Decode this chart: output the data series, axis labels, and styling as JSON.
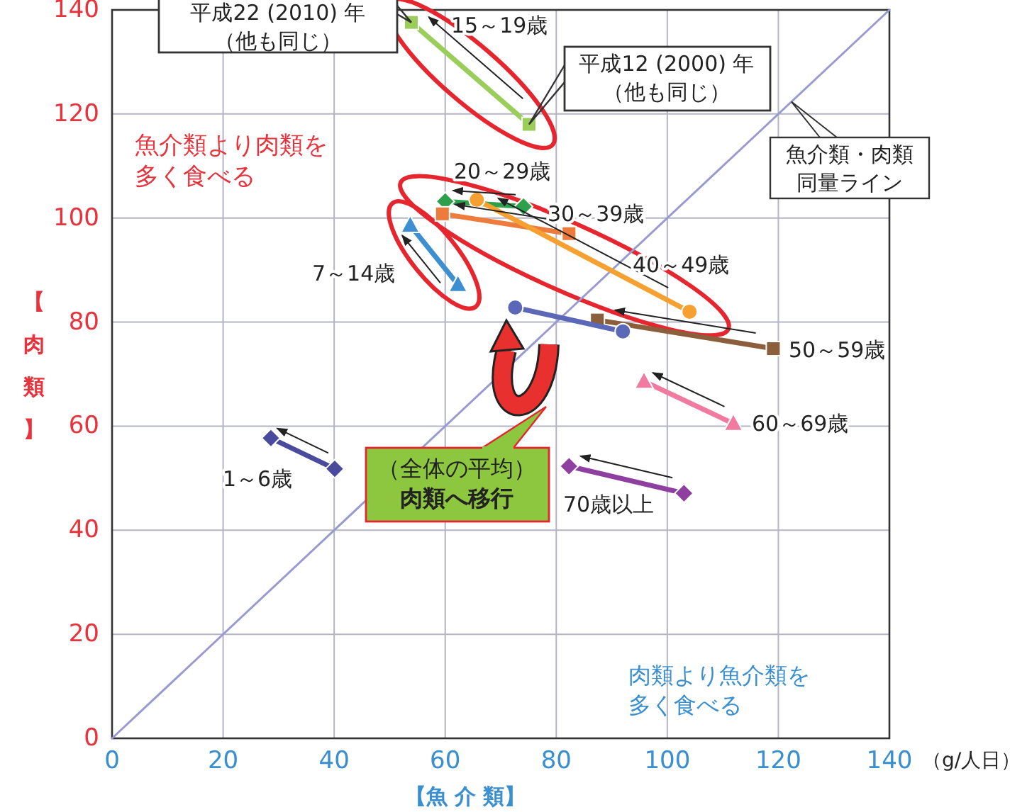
{
  "chart_data": {
    "type": "line",
    "xlabel": "【魚 介 類】",
    "ylabel": "【肉類】",
    "xlim": [
      0,
      140
    ],
    "ylim": [
      0,
      140
    ],
    "xticks": [
      0,
      20,
      40,
      60,
      80,
      100,
      120,
      140
    ],
    "yticks": [
      0,
      20,
      40,
      60,
      80,
      100,
      120,
      140
    ],
    "grid": true,
    "series": [
      {
        "name": "1～6歳",
        "color": "#4b4b9e",
        "marker": "diamond",
        "x": [
          40.1,
          28.6
        ],
        "values": [
          51.8,
          57.7
        ]
      },
      {
        "name": "7～14歳",
        "color": "#3d8fd1",
        "marker": "triangle",
        "x": [
          62.3,
          53.7
        ],
        "values": [
          87.2,
          98.6
        ]
      },
      {
        "name": "15～19歳",
        "color": "#9acd5a",
        "marker": "square",
        "x": [
          75.1,
          53.9
        ],
        "values": [
          118.0,
          137.6
        ]
      },
      {
        "name": "20～29歳",
        "color": "#2ea04c",
        "marker": "diamond",
        "x": [
          74.1,
          60.0
        ],
        "values": [
          102.2,
          103.2
        ]
      },
      {
        "name": "30～39歳",
        "color": "#ee7a3b",
        "marker": "square",
        "x": [
          82.3,
          59.5
        ],
        "values": [
          97.0,
          100.8
        ]
      },
      {
        "name": "40～49歳",
        "color": "#f5a030",
        "marker": "circle",
        "x": [
          104.0,
          65.7
        ],
        "values": [
          82.0,
          103.5
        ]
      },
      {
        "name": "50～59歳",
        "color": "#8b5e3c",
        "marker": "square",
        "x": [
          119.1,
          87.4
        ],
        "values": [
          74.9,
          80.4
        ]
      },
      {
        "name": "60～69歳",
        "color": "#f07aa0",
        "marker": "triangle",
        "x": [
          111.9,
          95.8
        ],
        "values": [
          60.5,
          68.6
        ]
      },
      {
        "name": "70歳以上",
        "color": "#8e3fa0",
        "marker": "diamond",
        "x": [
          103.0,
          82.3
        ],
        "values": [
          47.1,
          52.3
        ]
      },
      {
        "color": "#5b68b8",
        "marker": "circle",
        "x": [
          92.0,
          72.6
        ],
        "values": [
          78.2,
          82.8
        ]
      },
      {
        "name": "魚介類・肉類同量ライン",
        "color": "#9a9ad0",
        "marker": "none",
        "x": [
          0,
          140
        ],
        "values": [
          0,
          140
        ]
      }
    ],
    "annotations": [
      {
        "text": "平成22 (2010) 年（他も同じ）",
        "x": 53.9,
        "y": 137.6
      },
      {
        "text": "平成12 (2000) 年（他も同じ）",
        "x": 75.1,
        "y": 118.0
      },
      "魚介類より肉類を多く食べる",
      "肉類より魚介類を多く食べる",
      "（全体の平均）**肉類へ移行**",
      "（g/人日）"
    ]
  }
}
